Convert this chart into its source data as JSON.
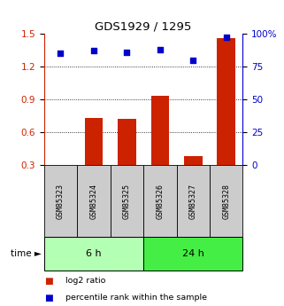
{
  "title": "GDS1929 / 1295",
  "samples": [
    "GSM85323",
    "GSM85324",
    "GSM85325",
    "GSM85326",
    "GSM85327",
    "GSM85328"
  ],
  "log2_ratio": [
    0.3,
    0.73,
    0.72,
    0.93,
    0.38,
    1.46
  ],
  "percentile_rank": [
    85,
    87,
    86,
    88,
    80,
    97
  ],
  "groups": [
    {
      "label": "6 h",
      "indices": [
        0,
        1,
        2
      ],
      "color": "#b3ffb3"
    },
    {
      "label": "24 h",
      "indices": [
        3,
        4,
        5
      ],
      "color": "#44ee44"
    }
  ],
  "bar_color": "#cc2200",
  "dot_color": "#0000cc",
  "left_yticks": [
    0.3,
    0.6,
    0.9,
    1.2,
    1.5
  ],
  "right_yticks": [
    0,
    25,
    50,
    75,
    100
  ],
  "left_ylim": [
    0.3,
    1.5
  ],
  "right_ylim": [
    0,
    100
  ],
  "left_tick_color": "#cc2200",
  "right_tick_color": "#0000cc",
  "legend_items": [
    {
      "color": "#cc2200",
      "label": "log2 ratio"
    },
    {
      "color": "#0000cc",
      "label": "percentile rank within the sample"
    }
  ],
  "sample_box_color": "#cccccc",
  "time_label": "time",
  "time_arrow": "►"
}
